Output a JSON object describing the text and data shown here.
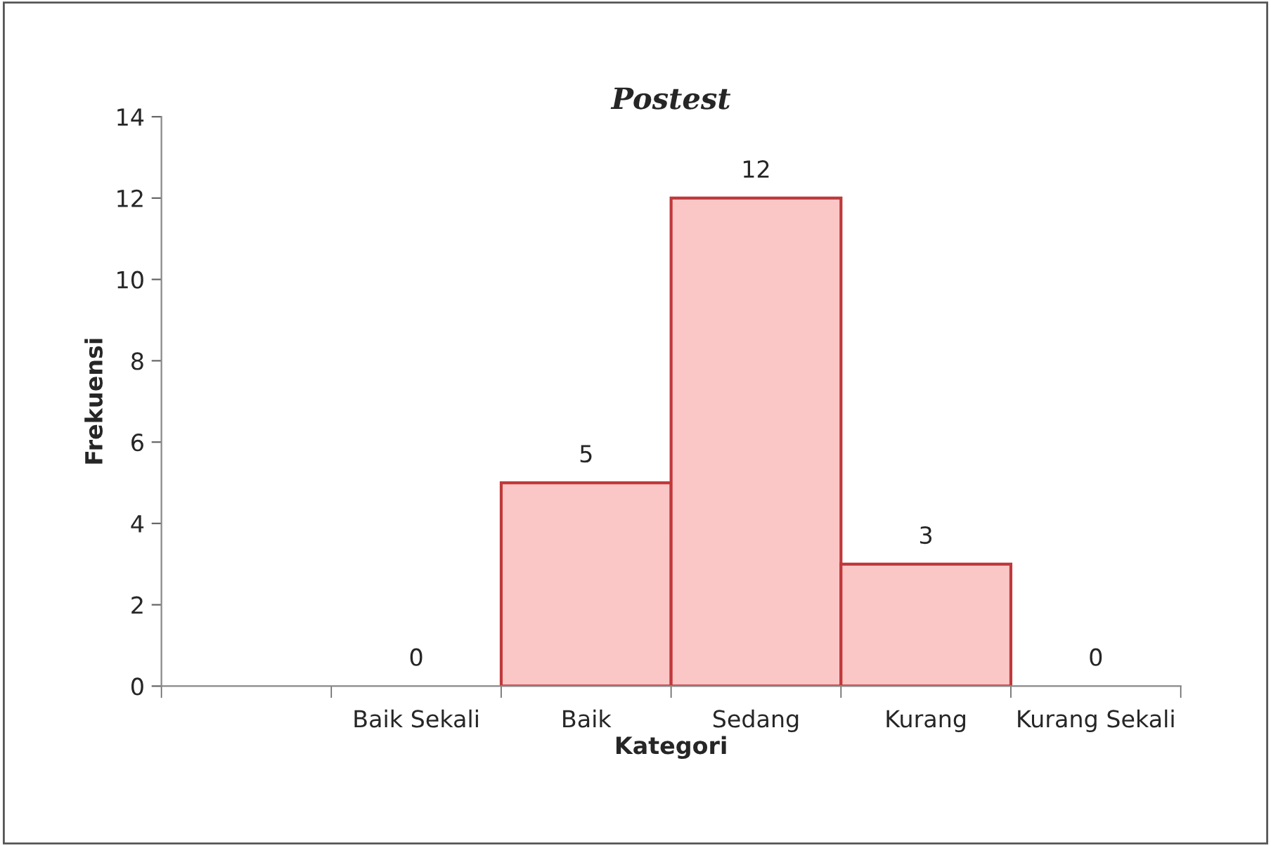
{
  "chart_data": {
    "type": "bar",
    "title": "Postest",
    "xlabel": "Kategori",
    "ylabel": "Frekuensi",
    "categories": [
      null,
      "Baik Sekali",
      "Baik",
      "Sedang",
      "Kurang",
      "Kurang Sekali"
    ],
    "values": [
      null,
      0,
      5,
      12,
      3,
      0
    ],
    "color": "#fbc6c6",
    "ylim": [
      0,
      14
    ],
    "yticks": [
      0,
      2,
      4,
      6,
      8,
      10,
      12,
      14
    ],
    "data_labels": true,
    "grid": false,
    "legend": false
  }
}
